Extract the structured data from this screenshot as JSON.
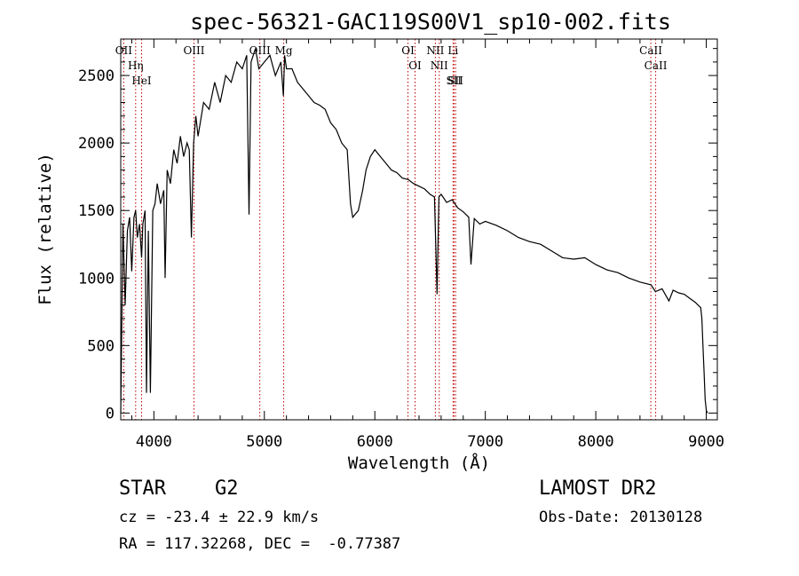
{
  "chart_data": {
    "type": "line",
    "title": "spec-56321-GAC119S00V1_sp10-002.fits",
    "xlabel": "Wavelength (Å)",
    "ylabel": "Flux (relative)",
    "xlim": [
      3700,
      9100
    ],
    "ylim": [
      -50,
      2770
    ],
    "x_ticks": [
      4000,
      5000,
      6000,
      7000,
      8000,
      9000
    ],
    "x_tick_labels": [
      "4000",
      "5000",
      "6000",
      "7000",
      "8000",
      "9000"
    ],
    "y_ticks": [
      0,
      500,
      1000,
      1500,
      2000,
      2500
    ],
    "y_tick_labels": [
      "0",
      "500",
      "1000",
      "1500",
      "2000",
      "2500"
    ],
    "grid": false,
    "series": [
      {
        "x": [
          3700,
          3720,
          3740,
          3760,
          3780,
          3800,
          3820,
          3835,
          3850,
          3870,
          3889,
          3900,
          3920,
          3933,
          3950,
          3968,
          3990,
          4010,
          4030,
          4060,
          4090,
          4102,
          4120,
          4150,
          4180,
          4210,
          4240,
          4270,
          4300,
          4320,
          4340,
          4360,
          4380,
          4400,
          4450,
          4500,
          4550,
          4600,
          4650,
          4700,
          4750,
          4800,
          4840,
          4861,
          4880,
          4920,
          4950,
          5000,
          5050,
          5100,
          5150,
          5172,
          5183,
          5200,
          5250,
          5300,
          5350,
          5400,
          5450,
          5500,
          5550,
          5600,
          5650,
          5700,
          5750,
          5780,
          5800,
          5850,
          5890,
          5920,
          5960,
          6000,
          6050,
          6100,
          6150,
          6200,
          6250,
          6300,
          6350,
          6400,
          6450,
          6500,
          6540,
          6563,
          6580,
          6600,
          6650,
          6700,
          6750,
          6800,
          6850,
          6870,
          6900,
          6950,
          7000,
          7100,
          7200,
          7300,
          7400,
          7500,
          7600,
          7700,
          7800,
          7900,
          8000,
          8100,
          8200,
          8300,
          8400,
          8500,
          8540,
          8600,
          8662,
          8700,
          8750,
          8800,
          8850,
          8900,
          8950,
          8960,
          8970,
          8980,
          8990,
          9000,
          9010
        ],
        "y": [
          0,
          1400,
          800,
          1350,
          1450,
          1050,
          1450,
          1500,
          1300,
          1400,
          1150,
          1400,
          1500,
          150,
          1350,
          150,
          1500,
          1550,
          1700,
          1550,
          1650,
          1000,
          1800,
          1700,
          1950,
          1850,
          2050,
          1900,
          2000,
          1950,
          1300,
          2000,
          2200,
          2050,
          2300,
          2250,
          2450,
          2300,
          2500,
          2450,
          2600,
          2550,
          2650,
          1470,
          2600,
          2700,
          2550,
          2600,
          2650,
          2500,
          2600,
          2350,
          2650,
          2550,
          2550,
          2450,
          2400,
          2350,
          2300,
          2280,
          2250,
          2150,
          2100,
          2000,
          1950,
          1550,
          1450,
          1500,
          1650,
          1800,
          1900,
          1950,
          1900,
          1850,
          1800,
          1780,
          1740,
          1730,
          1700,
          1680,
          1660,
          1620,
          1600,
          880,
          1600,
          1620,
          1560,
          1580,
          1520,
          1490,
          1450,
          1100,
          1440,
          1400,
          1420,
          1390,
          1350,
          1300,
          1270,
          1250,
          1200,
          1150,
          1140,
          1150,
          1100,
          1060,
          1040,
          1000,
          970,
          950,
          900,
          920,
          830,
          910,
          890,
          880,
          850,
          820,
          780,
          700,
          500,
          300,
          100,
          20,
          0
        ]
      }
    ],
    "annotations": [
      {
        "x": 3727,
        "label": "OII"
      },
      {
        "x": 3835,
        "label": "Hη"
      },
      {
        "x": 3889,
        "label": "HeI"
      },
      {
        "x": 4363,
        "label": "OIII"
      },
      {
        "x": 4959,
        "label": "OIII"
      },
      {
        "x": 5175,
        "label": "Mg"
      },
      {
        "x": 6300,
        "label": "OI"
      },
      {
        "x": 6364,
        "label": "OI"
      },
      {
        "x": 6548,
        "label": "NII"
      },
      {
        "x": 6583,
        "label": "NII"
      },
      {
        "x": 6716,
        "label": "SII"
      },
      {
        "x": 6731,
        "label": "SII"
      },
      {
        "x": 6708,
        "label": "Li"
      },
      {
        "x": 8498,
        "label": "CaII"
      },
      {
        "x": 8542,
        "label": "CaII"
      }
    ]
  },
  "info": {
    "object_class": "STAR",
    "subclass": "G2",
    "survey": "LAMOST DR2",
    "redshift": "cz = -23.4 ± 22.9 km/s",
    "obs_date": "Obs-Date: 20130128",
    "coords": "RA = 117.32268, DEC =  -0.77387"
  }
}
